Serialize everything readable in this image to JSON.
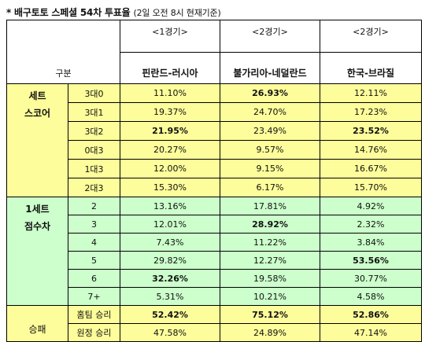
{
  "title": "* 배구토토 스페셜 54차 투표율",
  "subtitle": "(2일 오전 8시 현재기준)",
  "header": {
    "gubun": "구분",
    "games": [
      "<1경기>",
      "<2경기>",
      "<2경기>"
    ],
    "matches": [
      "핀란드-러시아",
      "불가리아-네덜란드",
      "한국-브라질"
    ]
  },
  "sections": {
    "set_score": {
      "label_line1": "세트",
      "label_line2": "스코어"
    },
    "point_diff": {
      "label_line1": "1세트",
      "label_line2": "점수차"
    },
    "result": {
      "label": "승패"
    }
  },
  "rows": {
    "set_score": [
      {
        "label": "3대0",
        "values": [
          "11.10%",
          "26.93%",
          "12.11%"
        ],
        "bold": [
          false,
          true,
          false
        ]
      },
      {
        "label": "3대1",
        "values": [
          "19.37%",
          "24.70%",
          "17.23%"
        ],
        "bold": [
          false,
          false,
          false
        ]
      },
      {
        "label": "3대2",
        "values": [
          "21.95%",
          "23.49%",
          "23.52%"
        ],
        "bold": [
          true,
          false,
          true
        ]
      },
      {
        "label": "0대3",
        "values": [
          "20.27%",
          "9.57%",
          "14.76%"
        ],
        "bold": [
          false,
          false,
          false
        ]
      },
      {
        "label": "1대3",
        "values": [
          "12.00%",
          "9.15%",
          "16.67%"
        ],
        "bold": [
          false,
          false,
          false
        ]
      },
      {
        "label": "2대3",
        "values": [
          "15.30%",
          "6.17%",
          "15.70%"
        ],
        "bold": [
          false,
          false,
          false
        ]
      }
    ],
    "point_diff": [
      {
        "label": "2",
        "values": [
          "13.16%",
          "17.81%",
          "4.92%"
        ],
        "bold": [
          false,
          false,
          false
        ]
      },
      {
        "label": "3",
        "values": [
          "12.01%",
          "28.92%",
          "2.32%"
        ],
        "bold": [
          false,
          true,
          false
        ]
      },
      {
        "label": "4",
        "values": [
          "7.43%",
          "11.22%",
          "3.84%"
        ],
        "bold": [
          false,
          false,
          false
        ]
      },
      {
        "label": "5",
        "values": [
          "29.82%",
          "12.27%",
          "53.56%"
        ],
        "bold": [
          false,
          false,
          true
        ]
      },
      {
        "label": "6",
        "values": [
          "32.26%",
          "19.58%",
          "30.77%"
        ],
        "bold": [
          true,
          false,
          false
        ]
      },
      {
        "label": "7+",
        "values": [
          "5.31%",
          "10.21%",
          "4.58%"
        ],
        "bold": [
          false,
          false,
          false
        ]
      }
    ],
    "result": [
      {
        "label": "홈팀 승리",
        "values": [
          "52.42%",
          "75.12%",
          "52.86%"
        ],
        "bold": [
          true,
          true,
          true
        ]
      },
      {
        "label": "원정 승리",
        "values": [
          "47.58%",
          "24.89%",
          "47.14%"
        ],
        "bold": [
          false,
          false,
          false
        ]
      }
    ]
  }
}
